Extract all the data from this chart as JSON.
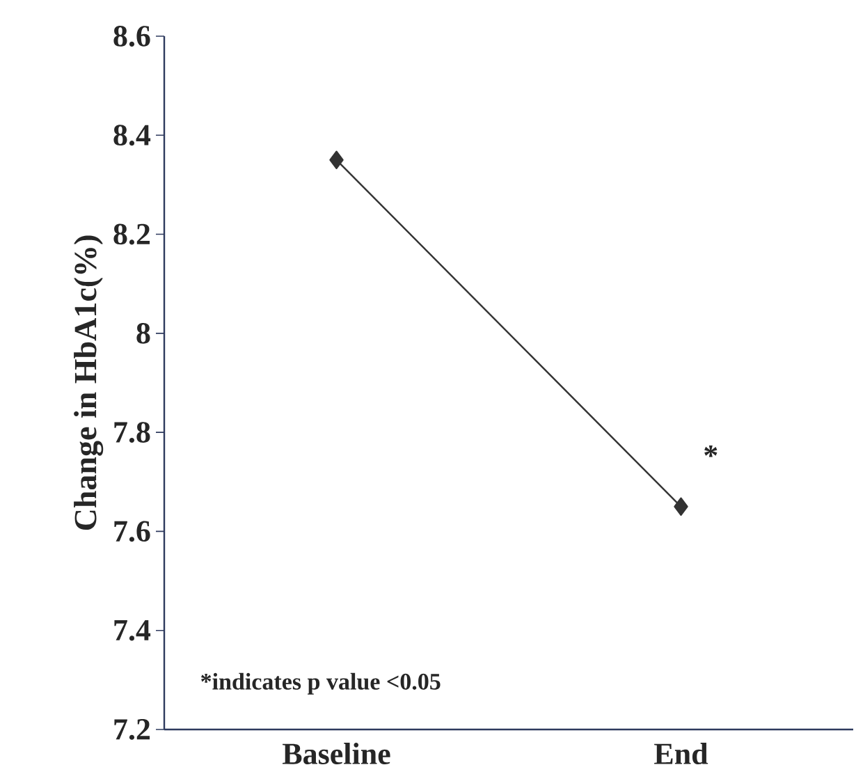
{
  "chart_data": {
    "type": "line",
    "ylabel": "Change in HbA1c(%)",
    "categories": [
      "Baseline",
      "End"
    ],
    "series": [
      {
        "color": "#333333",
        "values": [
          8.35,
          7.65
        ]
      }
    ],
    "ylim": [
      7.2,
      8.6
    ],
    "yticks": [
      7.2,
      7.4,
      7.6,
      7.8,
      8,
      8.2,
      8.4,
      8.6
    ],
    "marker": "diamond",
    "line_style": "solid",
    "annotations": [
      "*",
      "*indicates p value <0.05"
    ]
  }
}
